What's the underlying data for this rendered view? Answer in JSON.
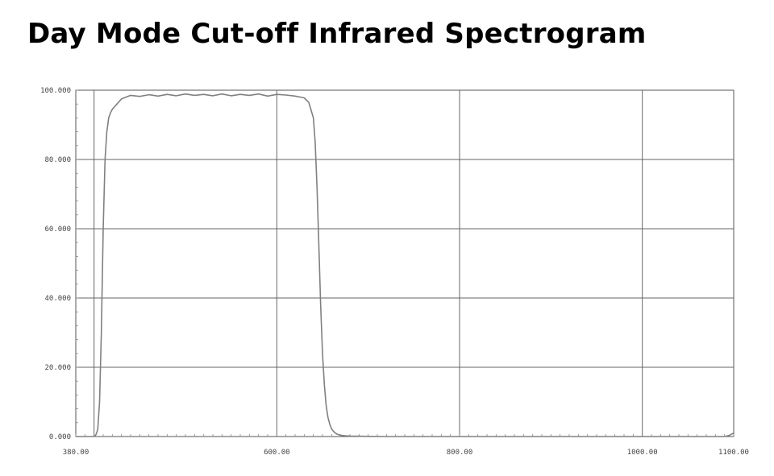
{
  "chart_data": {
    "type": "line",
    "title": "Day Mode Cut-off Infrared Spectrogram",
    "xlabel": "",
    "ylabel": "",
    "xlim": [
      380,
      1100
    ],
    "ylim": [
      0,
      100
    ],
    "grid": true,
    "x_ticks": [
      {
        "value": 380,
        "label": "380.00"
      },
      {
        "value": 600,
        "label": "600.00"
      },
      {
        "value": 800,
        "label": "800.00"
      },
      {
        "value": 1000,
        "label": "1000.00"
      },
      {
        "value": 1100,
        "label": "1100.00"
      }
    ],
    "x_grid": [
      400,
      600,
      800,
      1000
    ],
    "y_ticks": [
      {
        "value": 0,
        "label": "0.000"
      },
      {
        "value": 20,
        "label": "20.000"
      },
      {
        "value": 40,
        "label": "40.000"
      },
      {
        "value": 60,
        "label": "60.000"
      },
      {
        "value": 80,
        "label": "80.000"
      },
      {
        "value": 100,
        "label": "100.000"
      }
    ],
    "series": [
      {
        "color": "#808080",
        "x": [
          380,
          400,
          402,
          404,
          406,
          408,
          410,
          412,
          414,
          416,
          418,
          420,
          425,
          430,
          440,
          450,
          460,
          470,
          480,
          490,
          500,
          510,
          520,
          530,
          540,
          550,
          560,
          570,
          580,
          590,
          600,
          610,
          620,
          630,
          635,
          640,
          642,
          644,
          646,
          648,
          650,
          652,
          654,
          656,
          658,
          660,
          662,
          664,
          666,
          668,
          670,
          675,
          680,
          690,
          700,
          720,
          750,
          800,
          900,
          1000,
          1050,
          1090,
          1095,
          1100
        ],
        "y": [
          0,
          0,
          0.5,
          2,
          10,
          30,
          60,
          80,
          88,
          92,
          93.5,
          94.5,
          96,
          97.5,
          98.5,
          98.2,
          98.7,
          98.3,
          98.8,
          98.4,
          98.9,
          98.5,
          98.8,
          98.4,
          98.9,
          98.4,
          98.8,
          98.5,
          98.9,
          98.3,
          98.8,
          98.6,
          98.3,
          97.8,
          96.5,
          92,
          85,
          72,
          55,
          38,
          24,
          15,
          9,
          5.5,
          3.5,
          2.2,
          1.5,
          1,
          0.7,
          0.5,
          0.35,
          0.2,
          0.15,
          0.1,
          0.05,
          0,
          0,
          0,
          0,
          0,
          0,
          0,
          0.3,
          1
        ]
      }
    ]
  }
}
